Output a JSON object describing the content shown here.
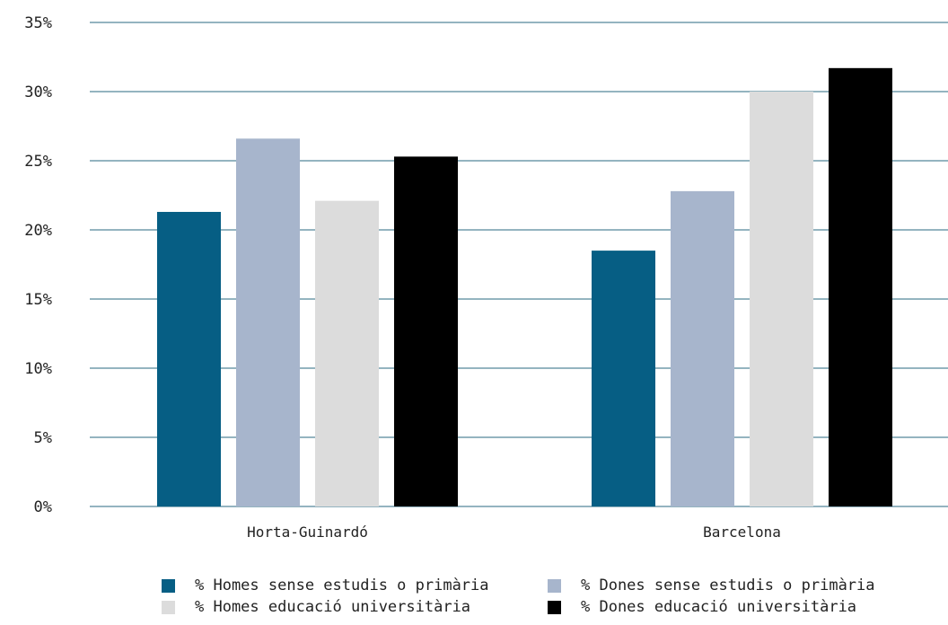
{
  "chart_data": {
    "type": "bar",
    "title": "",
    "xlabel": "",
    "ylabel": "",
    "categories": [
      "Horta-Guinardó",
      "Barcelona"
    ],
    "ylim": [
      0,
      35
    ],
    "yticks": [
      0,
      5,
      10,
      15,
      20,
      25,
      30,
      35
    ],
    "ytick_labels": [
      "0%",
      "5%",
      "10%",
      "15%",
      "20%",
      "25%",
      "30%",
      "35%"
    ],
    "grid": true,
    "legend_position": "bottom",
    "series": [
      {
        "name": "% Homes sense estudis o primària",
        "color": "#065e84",
        "values": [
          21.3,
          18.5
        ]
      },
      {
        "name": "% Dones sense estudis o primària",
        "color": "#a7b5cc",
        "values": [
          26.6,
          22.8
        ]
      },
      {
        "name": "% Homes educació universitària",
        "color": "#dcdcdc",
        "values": [
          22.1,
          30.0
        ]
      },
      {
        "name": "% Dones educació universitària",
        "color": "#000000",
        "values": [
          25.3,
          31.7
        ]
      }
    ],
    "gridline_color": "#2a6882"
  }
}
